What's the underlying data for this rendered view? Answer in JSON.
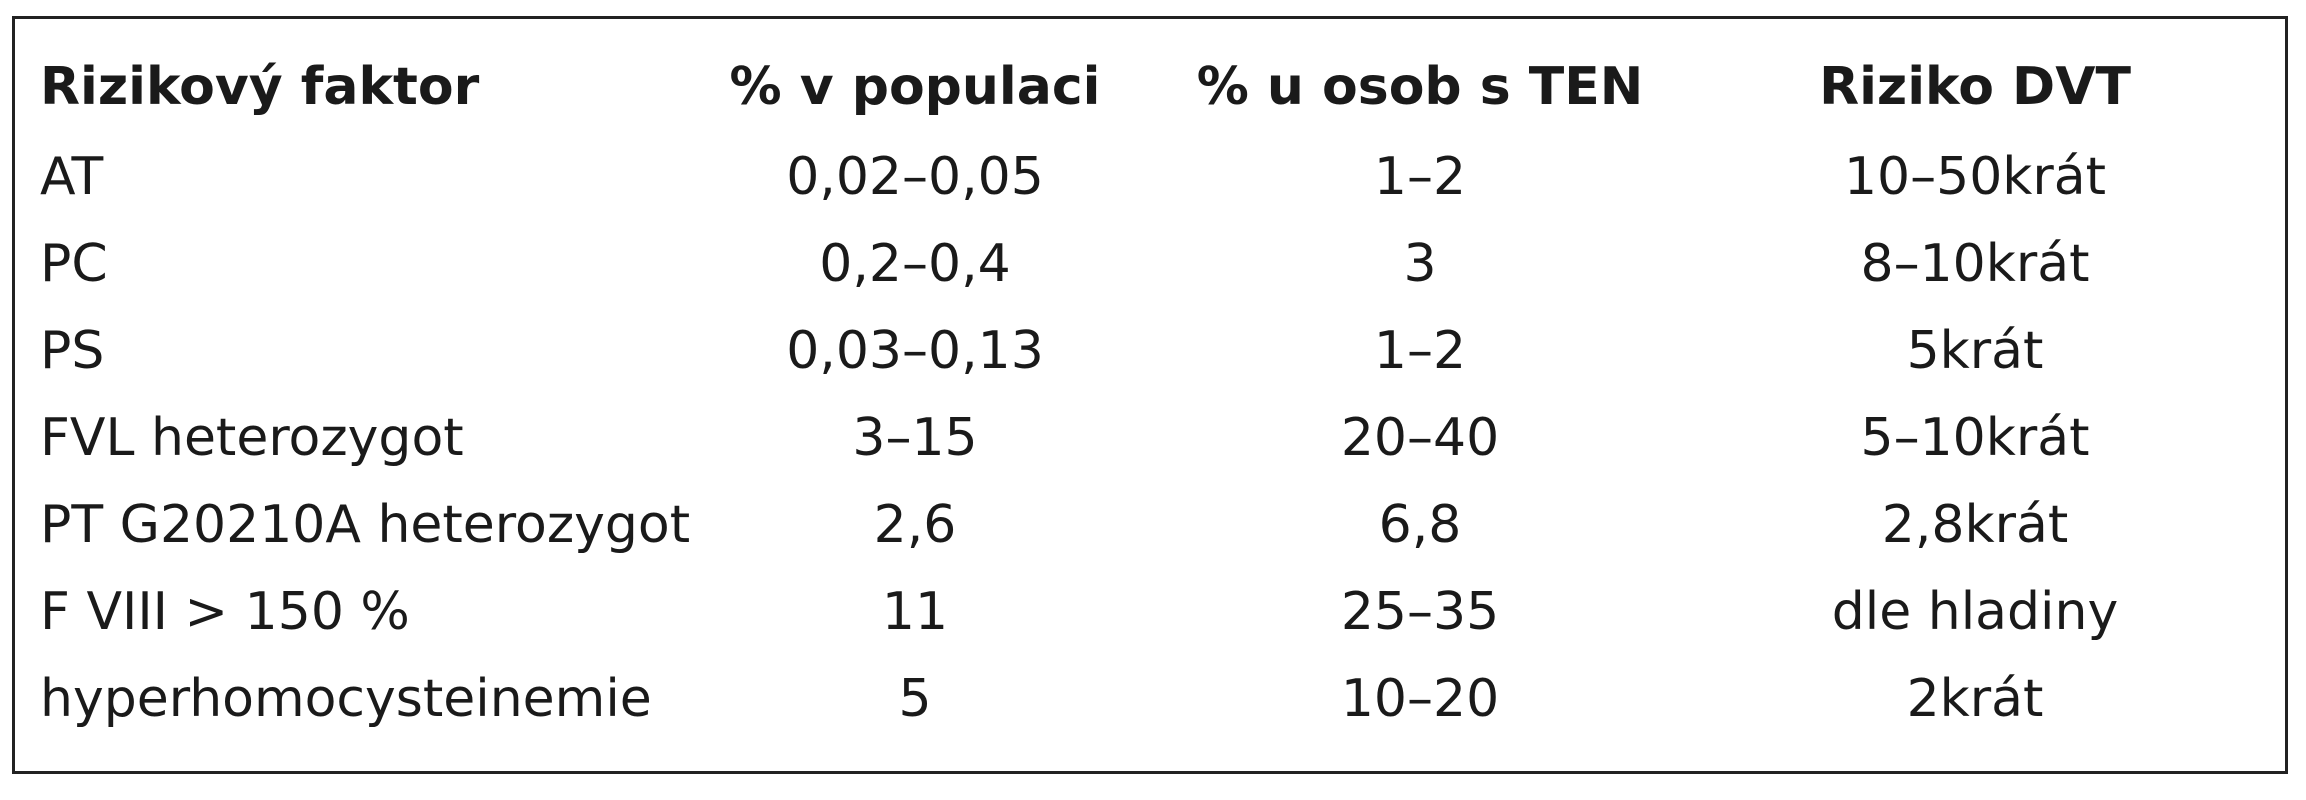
{
  "table": {
    "headers": [
      "Rizikový faktor",
      "% v populaci",
      "% u osob s TEN",
      "Riziko DVT"
    ],
    "rows": [
      [
        "AT",
        "0,02–0,05",
        "1–2",
        "10–50krát"
      ],
      [
        "PC",
        "0,2–0,4",
        "3",
        "8–10krát"
      ],
      [
        "PS",
        "0,03–0,13",
        "1–2",
        "5krát"
      ],
      [
        "FVL heterozygot",
        "3–15",
        "20–40",
        "5–10krát"
      ],
      [
        "PT G20210A heterozygot",
        "2,6",
        "6,8",
        "2,8krát"
      ],
      [
        "F VIII > 150 %",
        "11",
        "25–35",
        "dle hladiny"
      ],
      [
        "hyperhomocysteinemie",
        "5",
        "10–20",
        "2krát"
      ]
    ]
  }
}
